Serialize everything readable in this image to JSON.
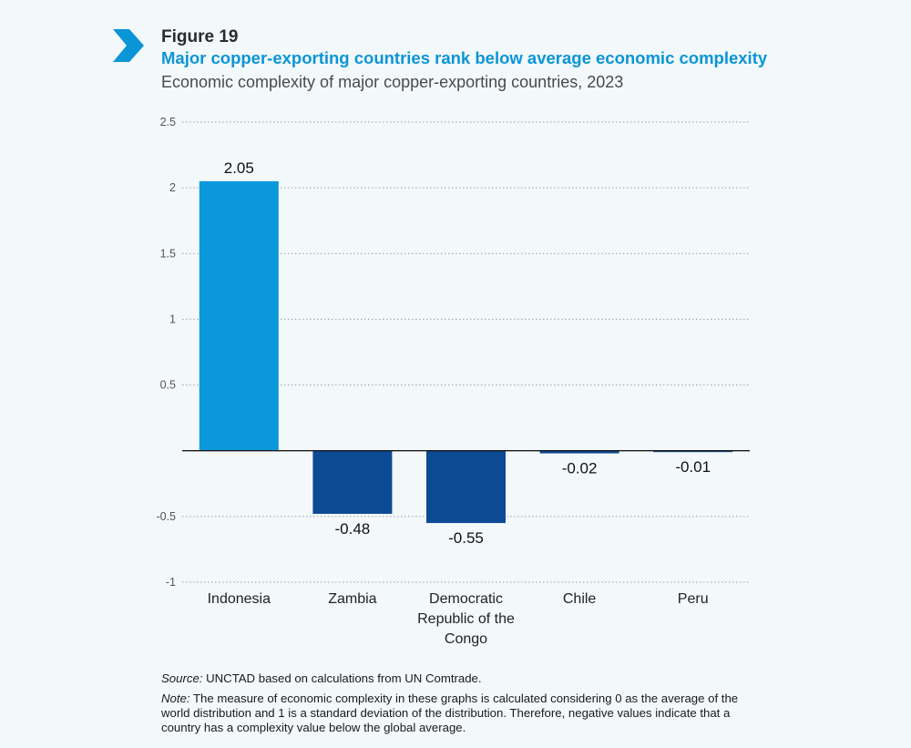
{
  "figure": {
    "label": "Figure 19",
    "title": "Major copper-exporting countries rank below average economic complexity",
    "subtitle": "Economic complexity of major copper-exporting countries, 2023",
    "icon": "chevron-right-icon",
    "accent_color": "#0a95d6"
  },
  "chart_data": {
    "type": "bar",
    "title": "Economic complexity of major copper-exporting countries, 2023",
    "xlabel": "",
    "ylabel": "",
    "categories": [
      "Indonesia",
      "Zambia",
      "Democratic Republic of the Congo",
      "Chile",
      "Peru"
    ],
    "category_lines": [
      [
        "Indonesia"
      ],
      [
        "Zambia"
      ],
      [
        "Democratic",
        "Republic of the",
        "Congo"
      ],
      [
        "Chile"
      ],
      [
        "Peru"
      ]
    ],
    "values": [
      2.05,
      -0.48,
      -0.55,
      -0.02,
      -0.01
    ],
    "value_labels": [
      "2.05",
      "-0.48",
      "-0.55",
      "-0.02",
      "-0.01"
    ],
    "ylim": [
      -1,
      2.5
    ],
    "yticks": [
      2.5,
      2,
      1.5,
      1,
      0.5,
      0,
      -0.5,
      -1
    ],
    "ytick_labels": [
      "2.5",
      "2",
      "1.5",
      "1",
      "0.5",
      "",
      "-0.5",
      "-1"
    ],
    "grid": true,
    "colors": {
      "positive": "#0b98da",
      "negative": "#0c4a94"
    }
  },
  "notes": {
    "source_label": "Source:",
    "source_text": " UNCTAD based on calculations from UN Comtrade.",
    "note_label": "Note:",
    "note_text": " The measure of economic complexity in these graphs is calculated considering 0 as the average of the world distribution and 1 is a standard deviation of the distribution. Therefore, negative values indicate that a country has a complexity value below the global average."
  }
}
